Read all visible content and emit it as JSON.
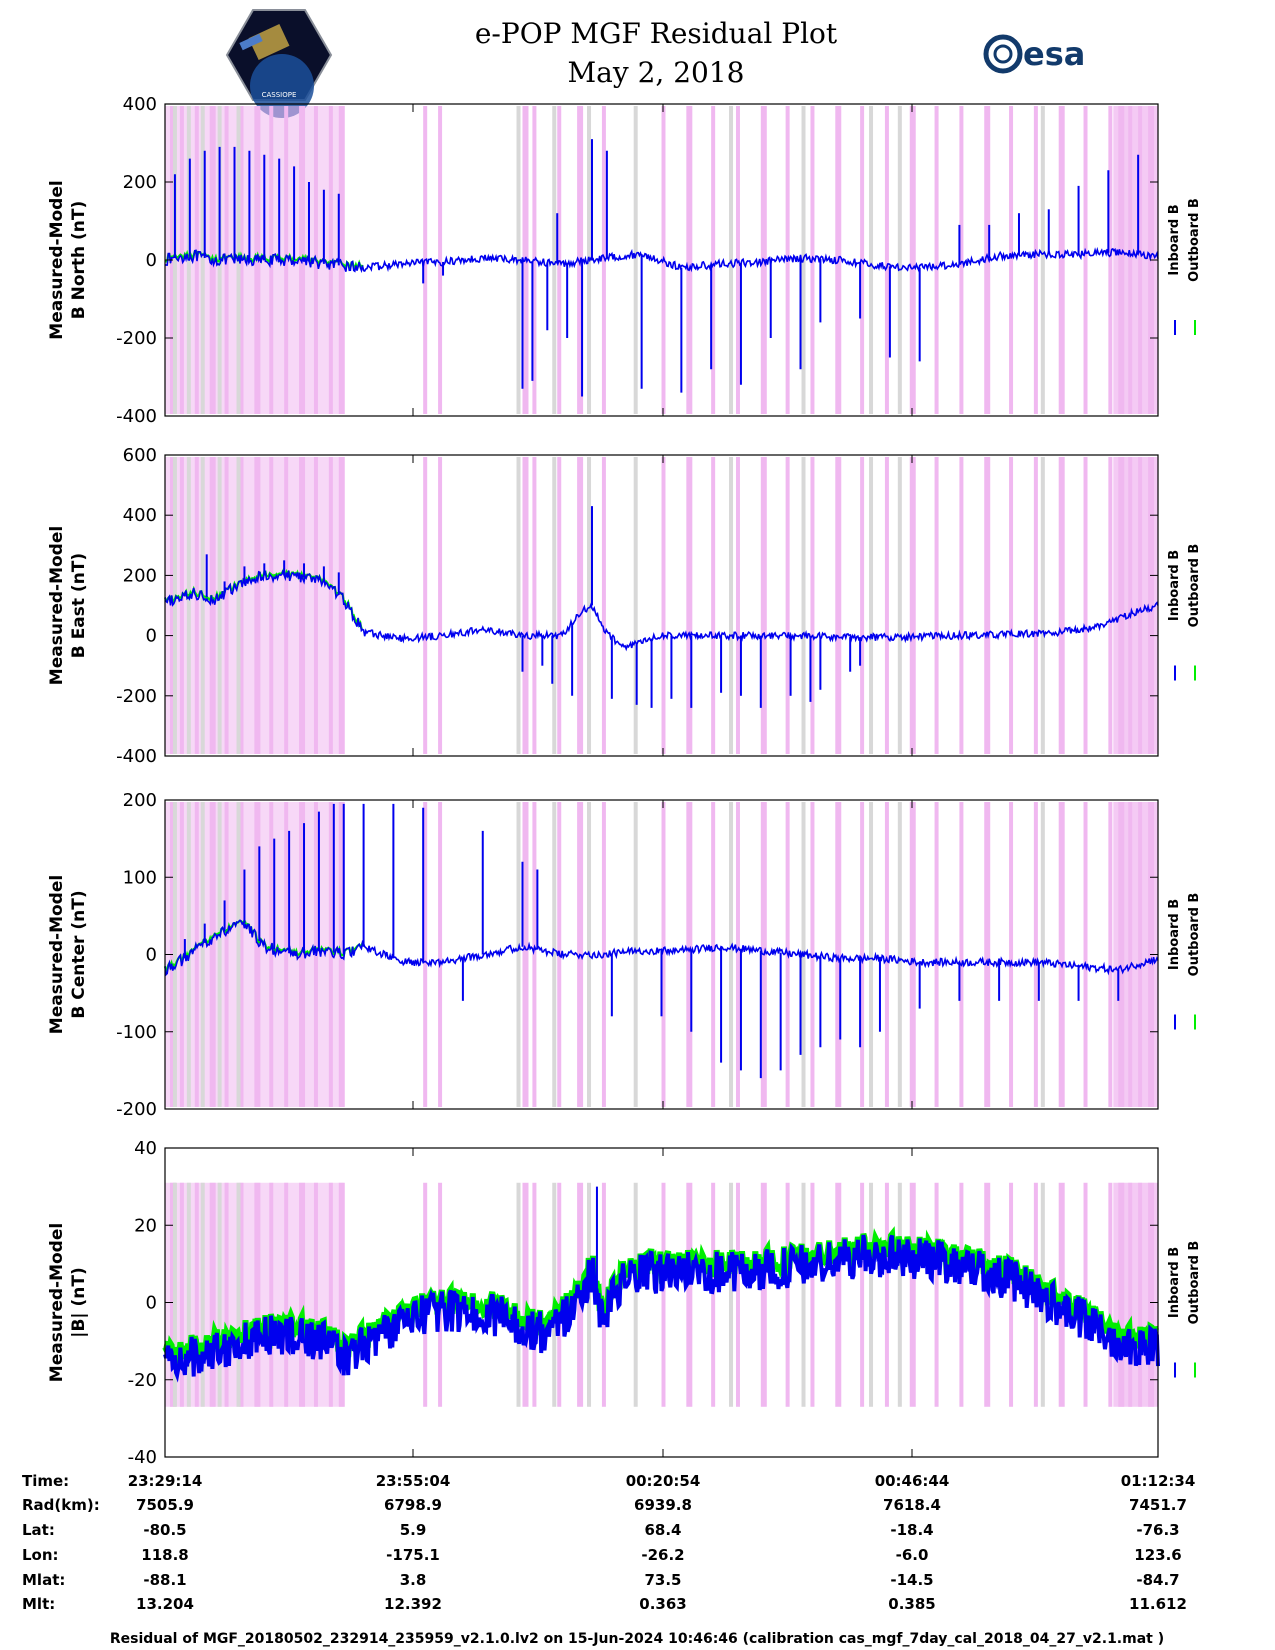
{
  "header": {
    "title_line1": "e-POP MGF Residual Plot",
    "title_line2": "May 2, 2018",
    "left_logo_label": "CASSIOPE",
    "right_logo_label": "esa"
  },
  "legend": {
    "inboard": "Inboard B",
    "outboard": "Outboard B"
  },
  "colors": {
    "inboard": "#0000ee",
    "outboard": "#00ee00",
    "eclipse_shade": "#f0b8f0",
    "gap_shade": "#d8d8d8"
  },
  "chart_data": [
    {
      "type": "line",
      "panel": "b_north",
      "ylabel_line1": "Measured-Model",
      "ylabel_line2": "B North (nT)",
      "ylim": [
        -400,
        400
      ],
      "yticks": [
        "400",
        "200",
        "0",
        "-200",
        "-400"
      ],
      "series": [
        {
          "name": "Inboard B"
        },
        {
          "name": "Outboard B"
        }
      ],
      "trend_x": [
        0,
        2,
        3,
        5,
        6,
        8,
        10,
        12,
        14,
        16,
        20,
        24,
        28,
        32,
        36,
        40,
        44,
        48,
        52,
        56,
        60,
        64,
        68,
        72,
        76,
        80,
        84,
        88,
        92,
        96,
        100
      ],
      "trend_y": [
        0,
        10,
        10,
        0,
        0,
        0,
        0,
        0,
        0,
        -10,
        -20,
        -10,
        -5,
        5,
        0,
        -10,
        5,
        15,
        -20,
        -10,
        -5,
        5,
        0,
        -15,
        -20,
        -10,
        10,
        15,
        15,
        20,
        10
      ],
      "spike_x": [
        1,
        2.5,
        4,
        5.5,
        7,
        8.5,
        10,
        11.5,
        13,
        14.5,
        16,
        17.5,
        26,
        28,
        36,
        37,
        38.5,
        39.5,
        40.5,
        42,
        43,
        44.5,
        48,
        52,
        55,
        58,
        61,
        64,
        66,
        70,
        73,
        76,
        80,
        83,
        86,
        89,
        92,
        95,
        98
      ],
      "spike_y": [
        220,
        260,
        280,
        290,
        290,
        280,
        270,
        260,
        240,
        200,
        180,
        170,
        -60,
        -40,
        -330,
        -310,
        -180,
        120,
        -200,
        -350,
        310,
        280,
        -330,
        -340,
        -280,
        -320,
        -200,
        -280,
        -160,
        -150,
        -250,
        -260,
        90,
        90,
        120,
        130,
        190,
        230,
        270
      ]
    },
    {
      "type": "line",
      "panel": "b_east",
      "ylabel_line1": "Measured-Model",
      "ylabel_line2": "B East (nT)",
      "ylim": [
        -400,
        600
      ],
      "yticks": [
        "600",
        "400",
        "200",
        "0",
        "-200",
        "-400"
      ],
      "series": [
        {
          "name": "Inboard B"
        },
        {
          "name": "Outboard B"
        }
      ],
      "trend_x": [
        0,
        3,
        5,
        7,
        10,
        13,
        16,
        18,
        20,
        24,
        28,
        32,
        36,
        40,
        42,
        43,
        44,
        46,
        50,
        56,
        62,
        68,
        74,
        80,
        86,
        90,
        94,
        97,
        100
      ],
      "trend_y": [
        110,
        140,
        120,
        160,
        200,
        200,
        180,
        120,
        10,
        -10,
        0,
        20,
        0,
        0,
        80,
        100,
        30,
        -40,
        0,
        0,
        0,
        -5,
        -5,
        0,
        5,
        10,
        30,
        70,
        100
      ],
      "spike_x": [
        2,
        4.2,
        6,
        8,
        10,
        12,
        14,
        16,
        17.5,
        36,
        38,
        39,
        41,
        43,
        45,
        47.5,
        49,
        51,
        53,
        56,
        58,
        60,
        63,
        65,
        66,
        69,
        70
      ],
      "spike_y": [
        140,
        270,
        180,
        230,
        240,
        250,
        240,
        230,
        210,
        -120,
        -100,
        -160,
        -200,
        430,
        -210,
        -230,
        -240,
        -210,
        -240,
        -190,
        -200,
        -240,
        -200,
        -220,
        -180,
        -120,
        -100
      ]
    },
    {
      "type": "line",
      "panel": "b_center",
      "ylabel_line1": "Measured-Model",
      "ylabel_line2": "B Center (nT)",
      "ylim": [
        -200,
        200
      ],
      "yticks": [
        "200",
        "100",
        "0",
        "-100",
        "-200"
      ],
      "series": [
        {
          "name": "Inboard B"
        },
        {
          "name": "Outboard B"
        }
      ],
      "trend_x": [
        0,
        2,
        4,
        6,
        8,
        10,
        13,
        16,
        18,
        20,
        24,
        28,
        32,
        36,
        40,
        44,
        48,
        52,
        56,
        60,
        64,
        68,
        72,
        76,
        80,
        84,
        88,
        92,
        96,
        100
      ],
      "trend_y": [
        -20,
        -5,
        15,
        30,
        40,
        10,
        0,
        5,
        0,
        10,
        -10,
        -10,
        0,
        10,
        0,
        0,
        5,
        5,
        10,
        5,
        0,
        -5,
        -5,
        -10,
        -10,
        -10,
        -10,
        -15,
        -20,
        -5
      ],
      "spike_x": [
        2,
        4,
        6,
        8,
        9.5,
        11,
        12.5,
        14,
        15.5,
        17,
        18,
        20,
        23,
        26,
        30,
        32,
        36,
        37.5,
        45,
        50,
        53,
        56,
        58,
        60,
        62,
        64,
        66,
        68,
        70,
        72,
        76,
        80,
        84,
        88,
        92,
        96
      ],
      "spike_y": [
        20,
        40,
        70,
        110,
        140,
        150,
        160,
        170,
        185,
        195,
        195,
        195,
        195,
        190,
        -60,
        160,
        120,
        110,
        -80,
        -80,
        -100,
        -140,
        -150,
        -160,
        -150,
        -130,
        -120,
        -110,
        -120,
        -100,
        -70,
        -60,
        -60,
        -60,
        -60,
        -60
      ]
    },
    {
      "type": "line",
      "panel": "b_total",
      "ylabel_line1": "Measured-Model",
      "ylabel_line2": "|B| (nT)",
      "ylim": [
        -40,
        40
      ],
      "yticks": [
        "40",
        "20",
        "0",
        "-20",
        "-40"
      ],
      "series": [
        {
          "name": "Inboard B"
        },
        {
          "name": "Outboard B"
        }
      ],
      "trend_x": [
        0,
        3,
        5,
        8,
        12,
        16,
        18,
        22,
        26,
        30,
        34,
        36,
        38,
        40,
        42,
        43,
        44,
        46,
        48,
        50,
        54,
        60,
        66,
        70,
        74,
        80,
        86,
        92,
        96,
        100
      ],
      "trend_y": [
        -15,
        -14,
        -12,
        -10,
        -8,
        -10,
        -14,
        -8,
        -3,
        -2,
        -4,
        -6,
        -8,
        -4,
        2,
        8,
        -5,
        5,
        7,
        8,
        8,
        8,
        10,
        12,
        12,
        10,
        5,
        -4,
        -10,
        -12
      ],
      "spike_x": [
        43.5
      ],
      "spike_y": [
        30
      ]
    }
  ],
  "x_axis": {
    "tick_labels": [
      "23:29:14",
      "23:55:04",
      "00:20:54",
      "00:46:44",
      "01:12:34"
    ]
  },
  "shading": {
    "eclipse_x": [
      0.5,
      1.5,
      3,
      4.5,
      6,
      7.5,
      9,
      10.5,
      12,
      13.5,
      15,
      16.5,
      17.5,
      26,
      27.5,
      36,
      37,
      39.5,
      41.5,
      44,
      50,
      52.5,
      55,
      57.5,
      60,
      62.5,
      65,
      67.5,
      70,
      72.5,
      75,
      77.5,
      80,
      82.5,
      85,
      87.5,
      90,
      92.5,
      95,
      96,
      97,
      98,
      99
    ],
    "gap_x": [
      0.8,
      2.2,
      3.6,
      5.3,
      7.2,
      35.4,
      39,
      42.5,
      47.2,
      56.8,
      64.1,
      70.9,
      73.8,
      88.2
    ]
  },
  "info_table": {
    "labels": [
      "Time:",
      "Rad(km):",
      "Lat:",
      "Lon:",
      "Mlat:",
      "Mlt:"
    ],
    "columns": [
      [
        "23:29:14",
        "7505.9",
        "-80.5",
        "118.8",
        "-88.1",
        "13.204"
      ],
      [
        "23:55:04",
        "6798.9",
        "5.9",
        "-175.1",
        "3.8",
        "12.392"
      ],
      [
        "00:20:54",
        "6939.8",
        "68.4",
        "-26.2",
        "73.5",
        "0.363"
      ],
      [
        "00:46:44",
        "7618.4",
        "-18.4",
        "-6.0",
        "-14.5",
        "0.385"
      ],
      [
        "01:12:34",
        "7451.7",
        "-76.3",
        "123.6",
        "-84.7",
        "11.612"
      ]
    ]
  },
  "footer": {
    "text": "Residual of MGF_20180502_232914_235959_v2.1.0.lv2 on 15-Jun-2024 10:46:46 (calibration cas_mgf_7day_cal_2018_04_27_v2.1.mat )"
  }
}
